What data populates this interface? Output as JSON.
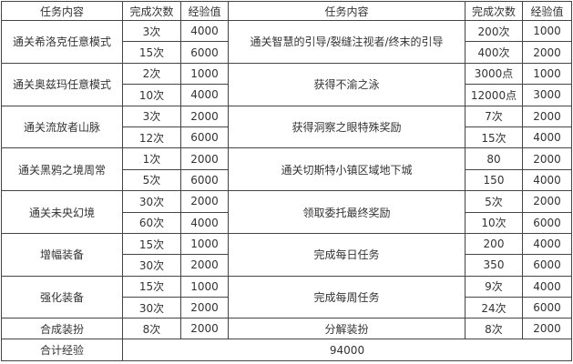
{
  "headers": {
    "task": "任务内容",
    "count": "完成次数",
    "exp": "经验值"
  },
  "groups": [
    {
      "left": {
        "task": "通关希洛克任意模式",
        "rows": [
          [
            "3次",
            "4000"
          ],
          [
            "15次",
            "6000"
          ]
        ]
      },
      "right": {
        "task": "通关智慧的引导/裂缝注视者/终末的引导",
        "rows": [
          [
            "200次",
            "1000"
          ],
          [
            "400次",
            "2000"
          ]
        ]
      }
    },
    {
      "left": {
        "task": "通关奥兹玛任意模式",
        "rows": [
          [
            "2次",
            "1000"
          ],
          [
            "10次",
            "4000"
          ]
        ]
      },
      "right": {
        "task": "获得不渝之泳",
        "rows": [
          [
            "3000点",
            "1000"
          ],
          [
            "12000点",
            "3000"
          ]
        ]
      }
    },
    {
      "left": {
        "task": "通关流放者山脉",
        "rows": [
          [
            "3次",
            "2000"
          ],
          [
            "12次",
            "6000"
          ]
        ]
      },
      "right": {
        "task": "获得洞察之眼特殊奖励",
        "rows": [
          [
            "7次",
            "2000"
          ],
          [
            "15次",
            "4000"
          ]
        ]
      }
    },
    {
      "left": {
        "task": "通关黑鸦之境周常",
        "rows": [
          [
            "1次",
            "2000"
          ],
          [
            "5次",
            "6000"
          ]
        ]
      },
      "right": {
        "task": "通关切斯特小镇区域地下城",
        "rows": [
          [
            "80",
            "2000"
          ],
          [
            "150",
            "4000"
          ]
        ]
      }
    },
    {
      "left": {
        "task": "通关未央幻境",
        "rows": [
          [
            "30次",
            "2000"
          ],
          [
            "60次",
            "4000"
          ]
        ]
      },
      "right": {
        "task": "领取委托最终奖励",
        "rows": [
          [
            "5次",
            "2000"
          ],
          [
            "10次",
            "6000"
          ]
        ]
      }
    },
    {
      "left": {
        "task": "增幅装备",
        "rows": [
          [
            "15次",
            "1000"
          ],
          [
            "30次",
            "2000"
          ]
        ]
      },
      "right": {
        "task": "完成每日任务",
        "rows": [
          [
            "200",
            "4000"
          ],
          [
            "350",
            "6000"
          ]
        ]
      }
    },
    {
      "left": {
        "task": "强化装备",
        "rows": [
          [
            "15次",
            "1000"
          ],
          [
            "30次",
            "2000"
          ]
        ]
      },
      "right": {
        "task": "完成每周任务",
        "rows": [
          [
            "9次",
            "4000"
          ],
          [
            "24次",
            "6000"
          ]
        ]
      }
    }
  ],
  "single": {
    "left": {
      "task": "合成装扮",
      "count": "8次",
      "exp": "2000"
    },
    "right": {
      "task": "分解装扮",
      "count": "8次",
      "exp": "2000"
    }
  },
  "total": {
    "label": "合计经验",
    "value": "94000"
  }
}
